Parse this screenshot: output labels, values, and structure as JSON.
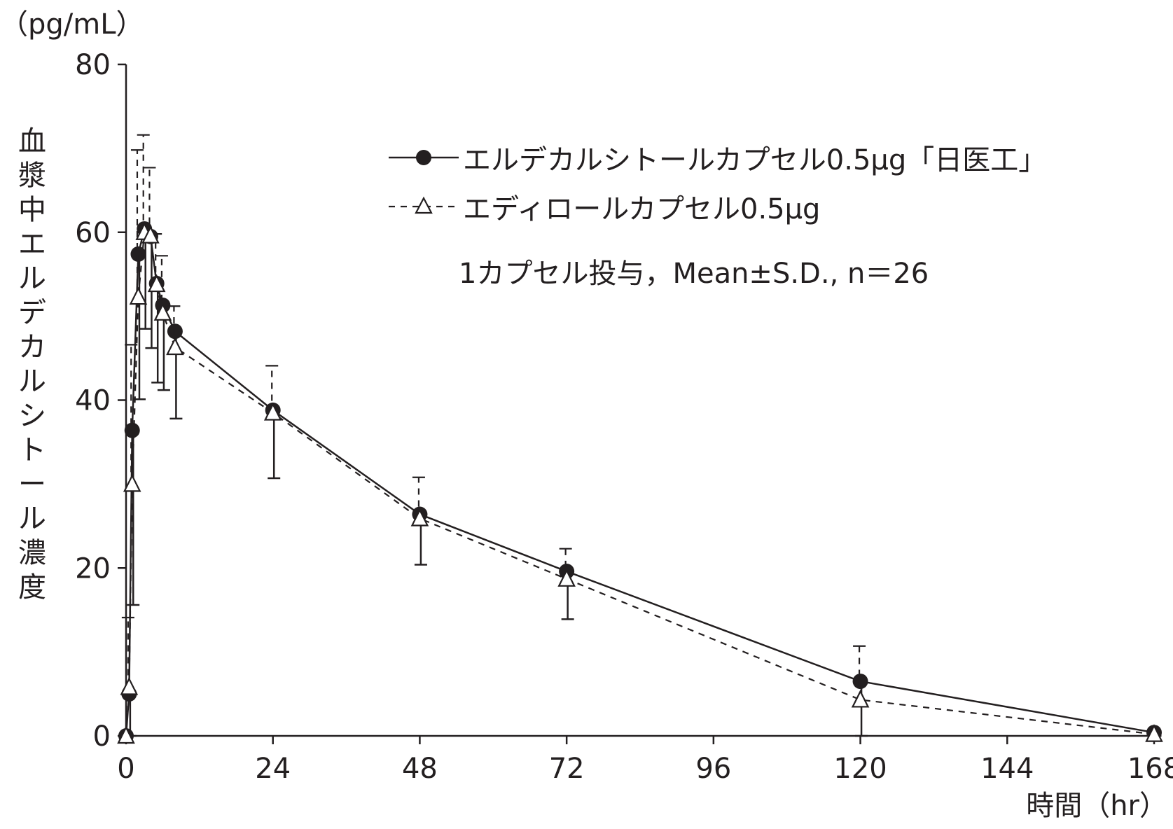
{
  "chart_data": {
    "type": "line",
    "unit_label": "（pg/mL）",
    "ylabel": "血漿中エルデカルシトール濃度",
    "xlabel": "時間（hr）",
    "note": "1カプセル投与，Mean±S.D., n＝26",
    "xlim": [
      0,
      168
    ],
    "ylim": [
      0,
      80
    ],
    "xticks": [
      0,
      24,
      48,
      72,
      96,
      120,
      144,
      168
    ],
    "yticks": [
      0,
      20,
      40,
      60,
      80
    ],
    "series": [
      {
        "name": "エルデカルシトールカプセル0.5μg「日医工」",
        "marker": "filled-circle",
        "line": "solid",
        "color": "#231f20",
        "x": [
          0,
          0.5,
          1,
          2,
          3,
          4,
          5,
          6,
          8,
          24,
          48,
          72,
          120,
          168
        ],
        "y": [
          0,
          5,
          36.4,
          57.4,
          60.4,
          59.5,
          53.9,
          51.3,
          48.2,
          38.8,
          26.4,
          19.6,
          6.5,
          0.4
        ],
        "sd": [
          0,
          10.5,
          20.8,
          17.3,
          11.9,
          13.3,
          11.8,
          10.1,
          10.4,
          8.1,
          6.0,
          5.7,
          6.5,
          0.4
        ]
      },
      {
        "name": "エディロールカプセル0.5μg",
        "marker": "open-triangle",
        "line": "dashed",
        "color": "#231f20",
        "x": [
          0,
          0.5,
          1,
          2,
          3,
          4,
          5,
          6,
          8,
          24,
          48,
          72,
          120,
          168
        ],
        "y": [
          0,
          5.8,
          30,
          52.3,
          60,
          59.6,
          53.8,
          50.4,
          46.3,
          38.5,
          25.9,
          18.7,
          4.3,
          0.2
        ],
        "sd": [
          0,
          8.3,
          16.6,
          17.5,
          11.6,
          8.1,
          6.0,
          6.8,
          4.9,
          5.6,
          4.9,
          3.6,
          6.4,
          0.3
        ]
      }
    ]
  }
}
